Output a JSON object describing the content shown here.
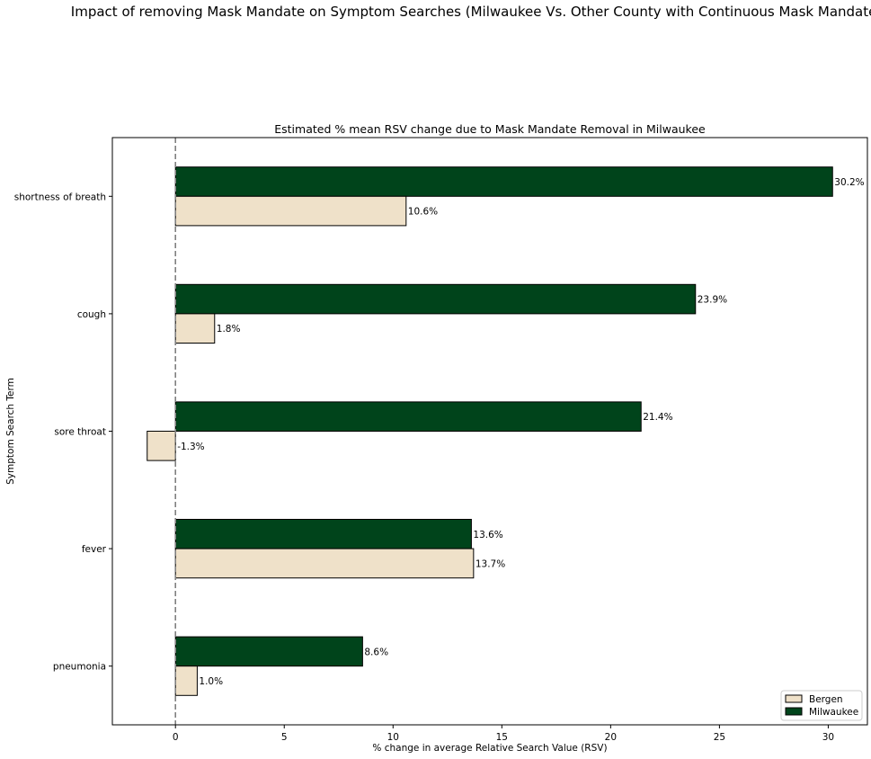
{
  "suptitle": "Impact of removing Mask Mandate on Symptom Searches (Milwaukee Vs. Other County with Continuous Mask Mandate)",
  "chart_data": {
    "type": "bar",
    "orientation": "horizontal",
    "title": "Estimated % mean RSV change due to Mask Mandate Removal in Milwaukee",
    "xlabel": "% change in average Relative Search Value (RSV)",
    "ylabel": "Symptom Search Term",
    "categories": [
      "shortness of breath",
      "cough",
      "sore throat",
      "fever",
      "pneumonia"
    ],
    "series": [
      {
        "name": "Bergen",
        "color": "#efe1c9",
        "values": [
          10.6,
          1.8,
          -1.3,
          13.7,
          1.0
        ],
        "labels": [
          "10.6%",
          "1.8%",
          "-1.3%",
          "13.7%",
          "1.0%"
        ]
      },
      {
        "name": "Milwaukee",
        "color": "#00441b",
        "values": [
          30.2,
          23.9,
          21.4,
          13.6,
          8.6
        ],
        "labels": [
          "30.2%",
          "23.9%",
          "21.4%",
          "13.6%",
          "8.6%"
        ]
      }
    ],
    "xlim": [
      -2.9,
      31.8
    ],
    "xticks": [
      0,
      5,
      10,
      15,
      20,
      25,
      30
    ],
    "xtick_labels": [
      "0",
      "5",
      "10",
      "15",
      "20",
      "25",
      "30"
    ],
    "reference_line": {
      "x": 0,
      "style": "dashed",
      "color": "#808080"
    },
    "grid": false,
    "legend": {
      "placement": "lower-right",
      "entries": [
        "Bergen",
        "Milwaukee"
      ]
    }
  }
}
